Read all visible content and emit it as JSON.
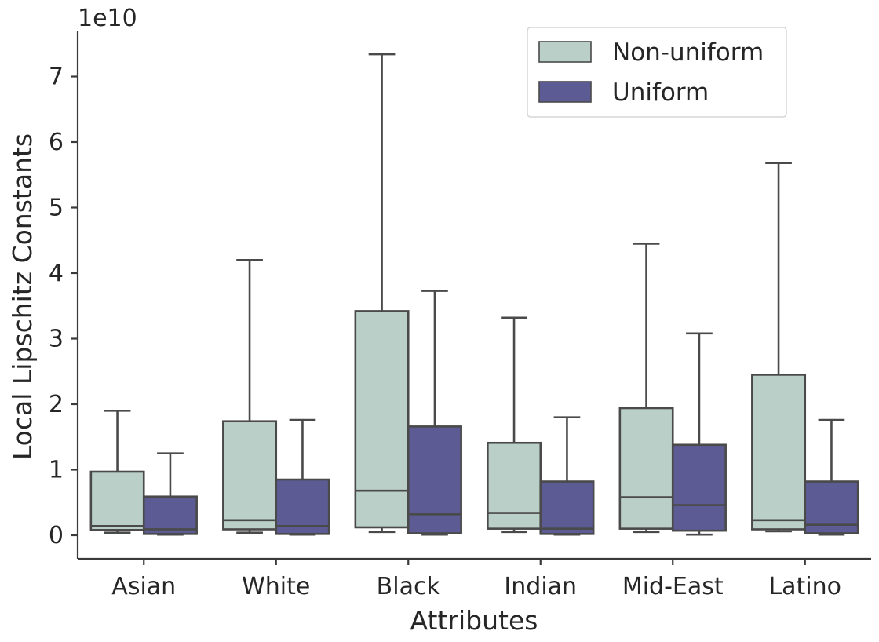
{
  "chart_data": {
    "type": "box",
    "xlabel": "Attributes",
    "ylabel": "Local Lipschitz Constants",
    "y_offset_label": "1e10",
    "y_scale_factor": 10000000000.0,
    "ylim": [
      -0.35,
      7.75
    ],
    "yticks": [
      0,
      1,
      2,
      3,
      4,
      5,
      6,
      7
    ],
    "categories": [
      "Asian",
      "White",
      "Black",
      "Indian",
      "Mid-East",
      "Latino"
    ],
    "legend": {
      "placement": "upper-right"
    },
    "series": [
      {
        "name": "Non-uniform",
        "color": "#b9cfc8",
        "boxes": [
          {
            "whislo": 0.04,
            "q1": 0.08,
            "med": 0.14,
            "q3": 0.97,
            "whishi": 1.9
          },
          {
            "whislo": 0.04,
            "q1": 0.09,
            "med": 0.23,
            "q3": 1.74,
            "whishi": 4.2
          },
          {
            "whislo": 0.05,
            "q1": 0.12,
            "med": 0.68,
            "q3": 3.42,
            "whishi": 7.34
          },
          {
            "whislo": 0.05,
            "q1": 0.1,
            "med": 0.34,
            "q3": 1.41,
            "whishi": 3.32
          },
          {
            "whislo": 0.05,
            "q1": 0.1,
            "med": 0.58,
            "q3": 1.94,
            "whishi": 4.45
          },
          {
            "whislo": 0.06,
            "q1": 0.09,
            "med": 0.23,
            "q3": 2.45,
            "whishi": 5.68
          }
        ]
      },
      {
        "name": "Uniform",
        "color": "#5c5b93",
        "boxes": [
          {
            "whislo": 0.01,
            "q1": 0.02,
            "med": 0.09,
            "q3": 0.59,
            "whishi": 1.25
          },
          {
            "whislo": 0.01,
            "q1": 0.02,
            "med": 0.14,
            "q3": 0.85,
            "whishi": 1.76
          },
          {
            "whislo": 0.01,
            "q1": 0.03,
            "med": 0.32,
            "q3": 1.66,
            "whishi": 3.73
          },
          {
            "whislo": 0.01,
            "q1": 0.02,
            "med": 0.1,
            "q3": 0.82,
            "whishi": 1.8
          },
          {
            "whislo": 0.01,
            "q1": 0.07,
            "med": 0.46,
            "q3": 1.38,
            "whishi": 3.08
          },
          {
            "whislo": 0.01,
            "q1": 0.03,
            "med": 0.16,
            "q3": 0.82,
            "whishi": 1.76
          }
        ]
      }
    ]
  }
}
